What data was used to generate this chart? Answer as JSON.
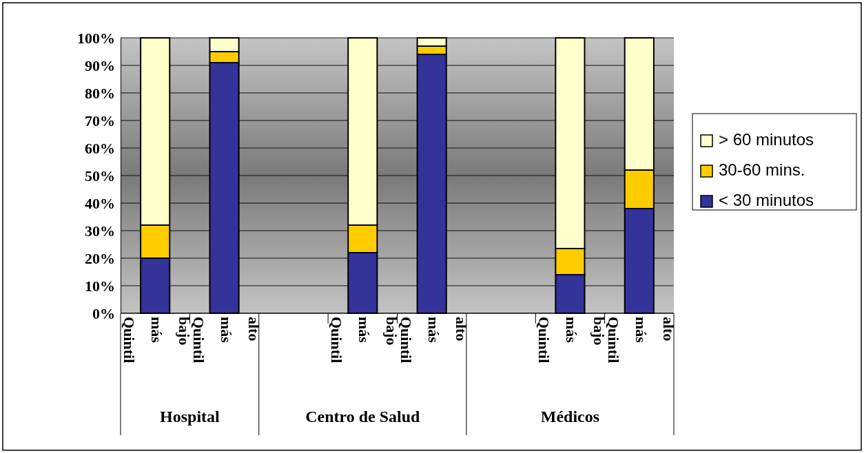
{
  "chart_data": {
    "type": "bar",
    "stacked": true,
    "categories": [
      "Quintil más bajo",
      "Quintil más alto",
      null,
      "Quintil más bajo",
      "Quintil más alto",
      null,
      "Quintil más bajo",
      "Quintil más alto"
    ],
    "series": [
      {
        "name": "< 30 minutos",
        "color": "#333399",
        "values": [
          20,
          91,
          null,
          22,
          94,
          null,
          14,
          38
        ]
      },
      {
        "name": "30-60 mins.",
        "color": "#ffcc00",
        "values": [
          12,
          4,
          null,
          10,
          3,
          null,
          9.5,
          14
        ]
      },
      {
        "name": "> 60 minutos",
        "color": "#ffffcc",
        "values": [
          68,
          5,
          null,
          68,
          3,
          null,
          76.5,
          48
        ]
      }
    ],
    "ylim": [
      0,
      100
    ],
    "yticks": [
      {
        "value": 0,
        "label": "0%"
      },
      {
        "value": 10,
        "label": "10%"
      },
      {
        "value": 20,
        "label": "20%"
      },
      {
        "value": 30,
        "label": "30%"
      },
      {
        "value": 40,
        "label": "40%"
      },
      {
        "value": 50,
        "label": "50%"
      },
      {
        "value": 60,
        "label": "60%"
      },
      {
        "value": 70,
        "label": "70%"
      },
      {
        "value": 80,
        "label": "80%"
      },
      {
        "value": 90,
        "label": "90%"
      },
      {
        "value": 100,
        "label": "100%"
      }
    ],
    "grid": "y",
    "legend": "right",
    "annotations": [
      "Hospital",
      "Centro de Salud",
      "Médicos"
    ]
  }
}
